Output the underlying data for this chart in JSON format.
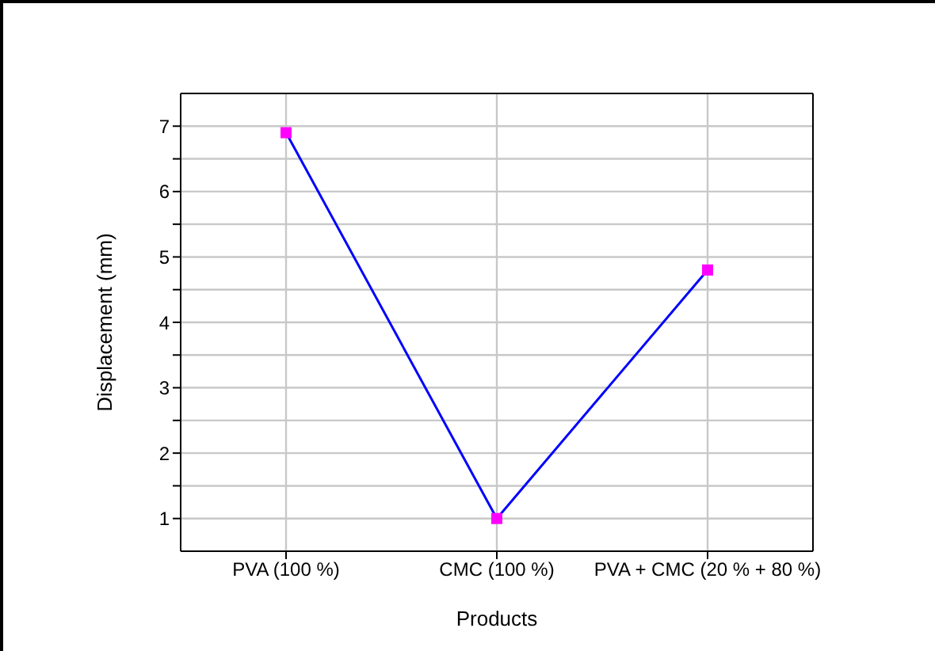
{
  "chart_data": {
    "type": "line",
    "xlabel": "Products",
    "ylabel": "Displacement (mm)",
    "categories": [
      "PVA (100 %)",
      "CMC (100 %)",
      "PVA + CMC (20 % + 80 %)"
    ],
    "series": [
      {
        "color": "#0000ff",
        "colors": [
          "#ff00ff",
          "#ff00ff",
          "#ff00ff"
        ],
        "values": [
          6.9,
          1.0,
          4.8
        ]
      }
    ],
    "ylim": [
      0.5,
      7.5
    ],
    "yticks": [
      1,
      {
        "value": 1.5,
        "label": null
      },
      2,
      {
        "value": 2.5,
        "label": null
      },
      3,
      {
        "value": 3.5,
        "label": null
      },
      4,
      {
        "value": 4.5,
        "label": null
      },
      5,
      {
        "value": 5.5,
        "label": null
      },
      6,
      {
        "value": 6.5,
        "label": null
      },
      7
    ],
    "grid": true,
    "marker": "square",
    "line_style": "solid",
    "legend": false
  }
}
